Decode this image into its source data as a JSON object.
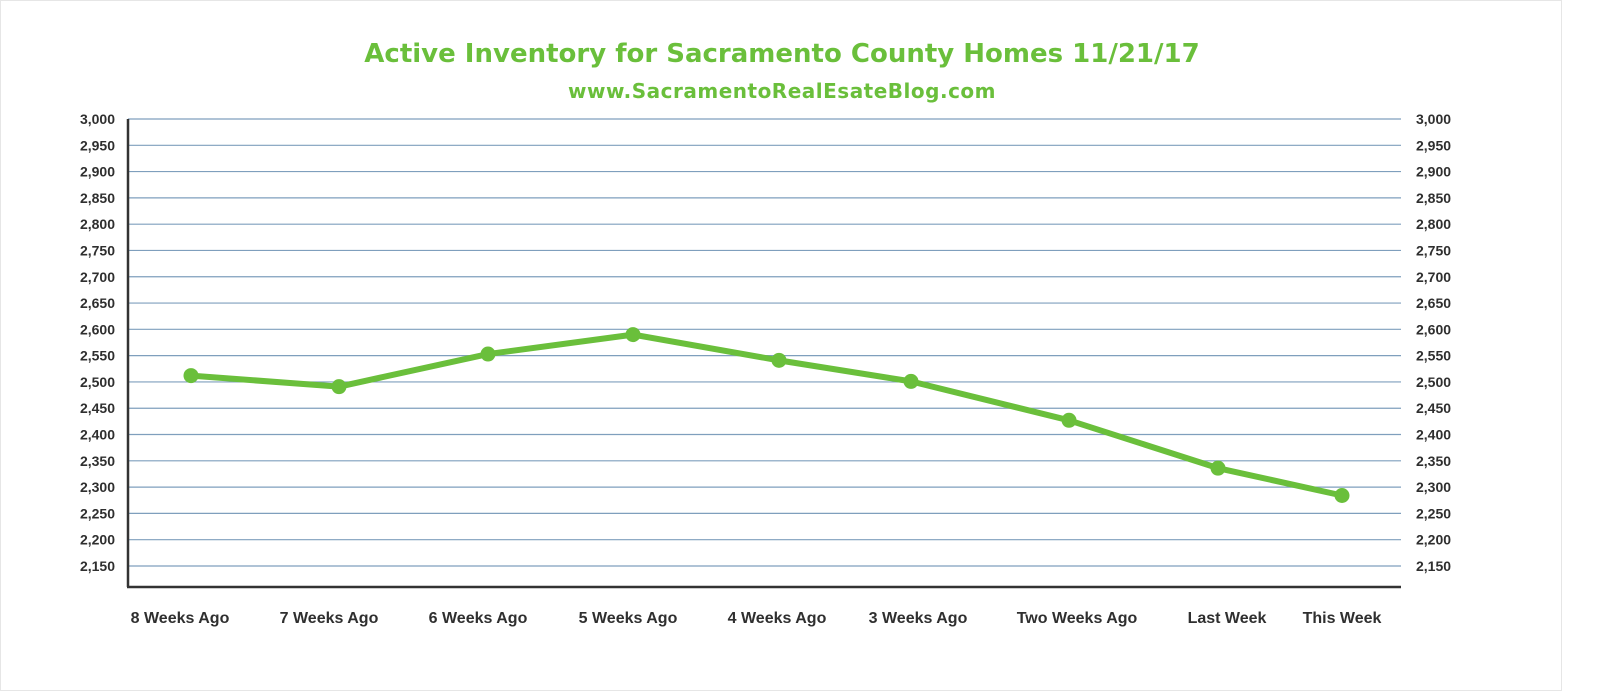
{
  "colors": {
    "accent": "#6abf3b",
    "grid": "#7f9fbd",
    "axis": "#333333",
    "tick_text": "#2f2f2f",
    "line": "#6abf3b"
  },
  "chart_data": {
    "type": "line",
    "title": "Active Inventory for Sacramento County Homes 11/21/17",
    "subtitle": "www.SacramentoRealEsateBlog.com",
    "xlabel": "",
    "ylabel": "",
    "categories": [
      "8 Weeks Ago",
      "7 Weeks Ago",
      "6 Weeks Ago",
      "5 Weeks Ago",
      "4 Weeks Ago",
      "3 Weeks Ago",
      "Two Weeks Ago",
      "Last Week",
      "This Week"
    ],
    "series": [
      {
        "values": [
          2512,
          2491,
          2553,
          2590,
          2541,
          2501,
          2427,
          2336,
          2284
        ]
      }
    ],
    "ylim": [
      2110,
      3000
    ],
    "y_ticks": [
      "3,000",
      "2,950",
      "2,900",
      "2,850",
      "2,800",
      "2,750",
      "2,700",
      "2,650",
      "2,600",
      "2,550",
      "2,500",
      "2,450",
      "2,400",
      "2,350",
      "2,300",
      "2,250",
      "2,200",
      "2,150"
    ],
    "y_tick_values": [
      3000,
      2950,
      2900,
      2850,
      2800,
      2750,
      2700,
      2650,
      2600,
      2550,
      2500,
      2450,
      2400,
      2350,
      2300,
      2250,
      2200,
      2150
    ],
    "grid": true,
    "legend": "none",
    "axes": "left-and-right"
  }
}
